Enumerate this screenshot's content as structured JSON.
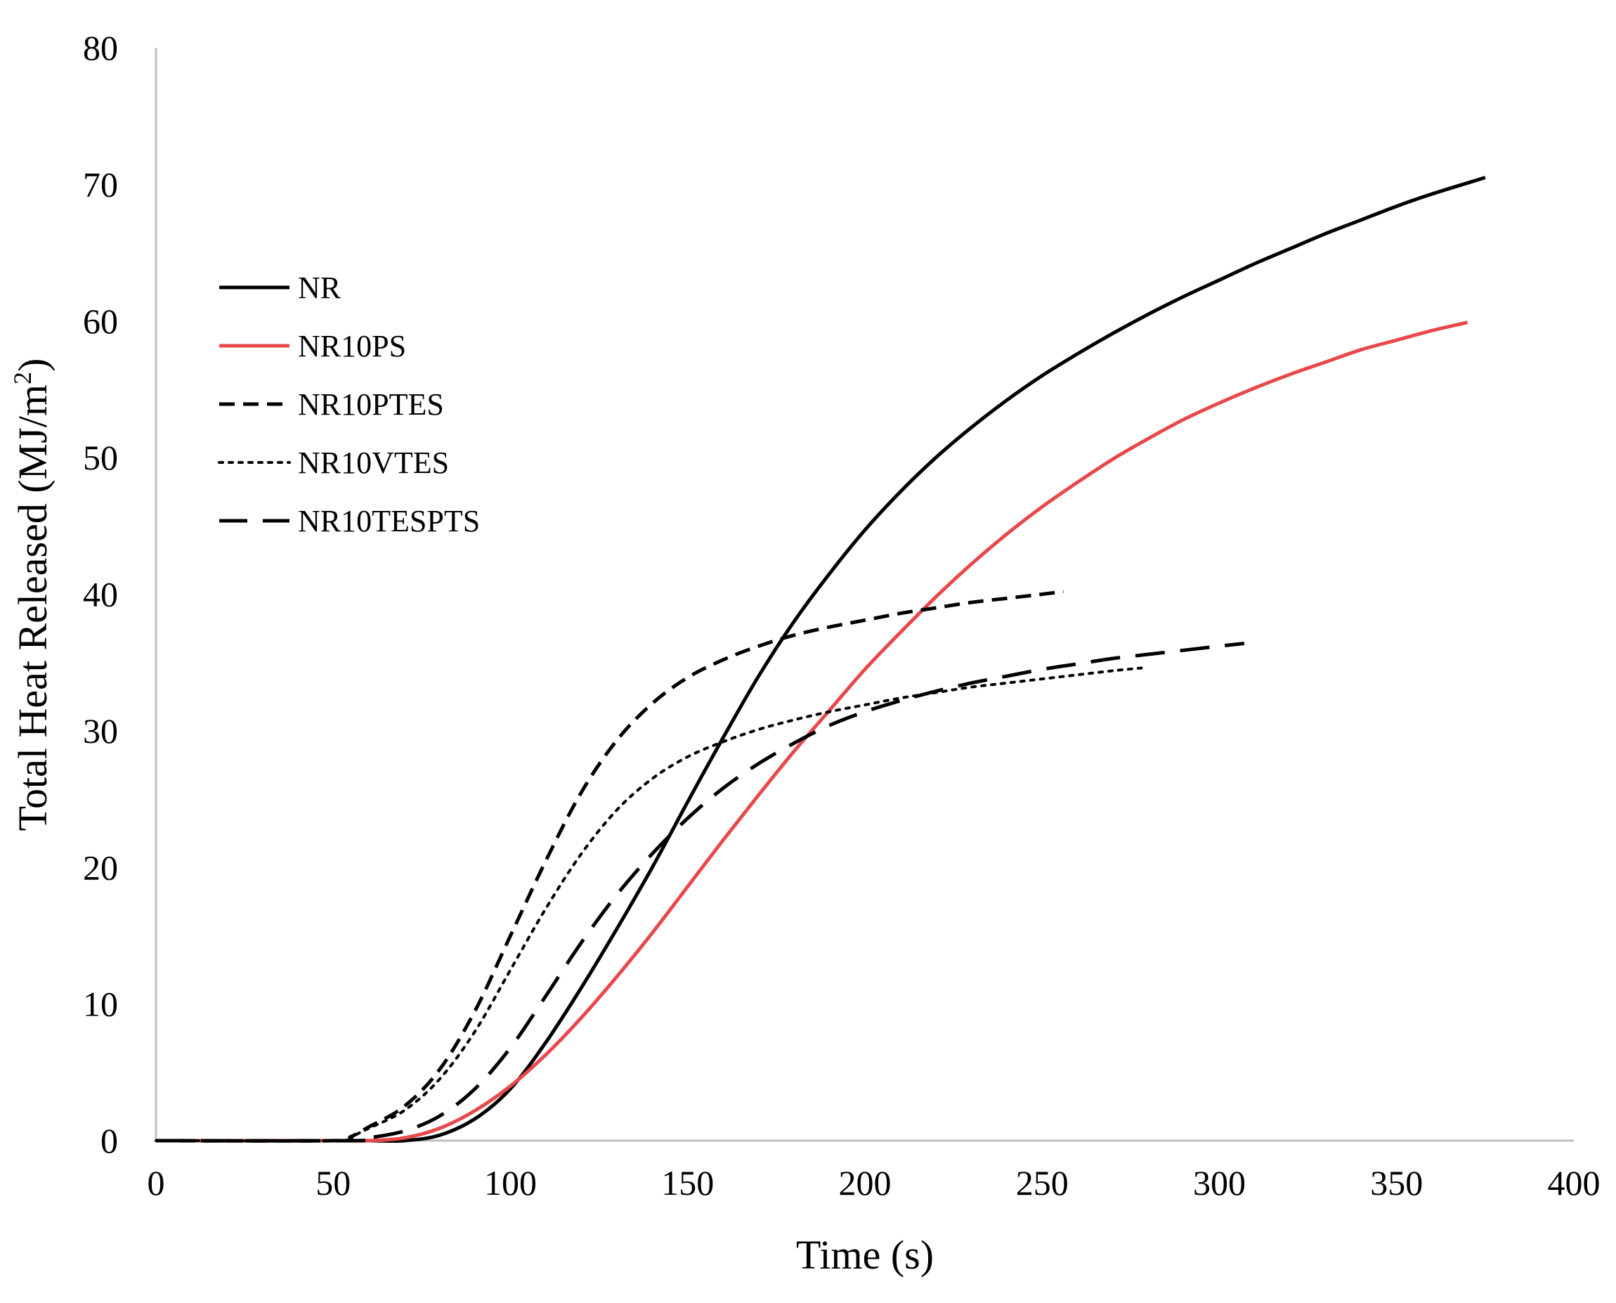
{
  "chart_data": {
    "type": "line",
    "title": "",
    "xlabel": "Time (s)",
    "ylabel_main": "Total Heat Released (MJ/m",
    "ylabel_sup": "2",
    "ylabel_end": ")",
    "xlim": [
      0,
      400
    ],
    "ylim": [
      0,
      80
    ],
    "xticks": [
      0,
      50,
      100,
      150,
      200,
      250,
      300,
      350,
      400
    ],
    "yticks": [
      0,
      10,
      20,
      30,
      40,
      50,
      60,
      70,
      80
    ],
    "grid": false,
    "legend_position": "upper-left",
    "series": [
      {
        "name": "NR",
        "style": "solid",
        "color": "#000000",
        "points": [
          [
            0,
            0
          ],
          [
            50,
            0
          ],
          [
            60,
            0
          ],
          [
            70,
            0
          ],
          [
            80,
            0.4
          ],
          [
            90,
            1.6
          ],
          [
            100,
            3.8
          ],
          [
            110,
            7.2
          ],
          [
            120,
            11.2
          ],
          [
            130,
            15.5
          ],
          [
            140,
            20.0
          ],
          [
            150,
            24.8
          ],
          [
            160,
            29.5
          ],
          [
            170,
            34.0
          ],
          [
            180,
            38.0
          ],
          [
            190,
            41.5
          ],
          [
            200,
            44.7
          ],
          [
            210,
            47.5
          ],
          [
            220,
            50.0
          ],
          [
            230,
            52.2
          ],
          [
            240,
            54.2
          ],
          [
            250,
            56.0
          ],
          [
            260,
            57.6
          ],
          [
            270,
            59.1
          ],
          [
            280,
            60.5
          ],
          [
            290,
            61.8
          ],
          [
            300,
            63.0
          ],
          [
            310,
            64.2
          ],
          [
            320,
            65.3
          ],
          [
            330,
            66.4
          ],
          [
            340,
            67.4
          ],
          [
            350,
            68.4
          ],
          [
            360,
            69.3
          ],
          [
            375,
            70.5
          ]
        ]
      },
      {
        "name": "NR10PS",
        "style": "solid",
        "color": "#e8484a",
        "points": [
          [
            0,
            0
          ],
          [
            50,
            0
          ],
          [
            60,
            0
          ],
          [
            70,
            0.2
          ],
          [
            80,
            0.9
          ],
          [
            90,
            2.2
          ],
          [
            100,
            4.0
          ],
          [
            110,
            6.3
          ],
          [
            120,
            9.0
          ],
          [
            130,
            12.0
          ],
          [
            140,
            15.2
          ],
          [
            150,
            18.6
          ],
          [
            160,
            22.0
          ],
          [
            170,
            25.3
          ],
          [
            180,
            28.5
          ],
          [
            190,
            31.5
          ],
          [
            200,
            34.5
          ],
          [
            210,
            37.2
          ],
          [
            220,
            39.8
          ],
          [
            230,
            42.2
          ],
          [
            240,
            44.4
          ],
          [
            250,
            46.4
          ],
          [
            260,
            48.2
          ],
          [
            270,
            49.9
          ],
          [
            280,
            51.4
          ],
          [
            290,
            52.8
          ],
          [
            300,
            54.0
          ],
          [
            310,
            55.1
          ],
          [
            320,
            56.1
          ],
          [
            330,
            57.0
          ],
          [
            340,
            57.9
          ],
          [
            350,
            58.6
          ],
          [
            360,
            59.3
          ],
          [
            370,
            59.9
          ]
        ]
      },
      {
        "name": "NR10PTES",
        "style": "dashed",
        "color": "#000000",
        "points": [
          [
            0,
            0
          ],
          [
            50,
            0
          ],
          [
            55,
            0.3
          ],
          [
            60,
            1.0
          ],
          [
            70,
            2.5
          ],
          [
            80,
            5.2
          ],
          [
            90,
            9.5
          ],
          [
            100,
            15.0
          ],
          [
            110,
            20.5
          ],
          [
            120,
            25.5
          ],
          [
            130,
            29.3
          ],
          [
            140,
            32.0
          ],
          [
            150,
            33.9
          ],
          [
            160,
            35.2
          ],
          [
            170,
            36.2
          ],
          [
            180,
            37.0
          ],
          [
            190,
            37.6
          ],
          [
            200,
            38.1
          ],
          [
            210,
            38.6
          ],
          [
            220,
            39.0
          ],
          [
            230,
            39.4
          ],
          [
            240,
            39.7
          ],
          [
            250,
            40.0
          ],
          [
            256,
            40.2
          ]
        ]
      },
      {
        "name": "NR10VTES",
        "style": "dotted",
        "color": "#000000",
        "points": [
          [
            0,
            0
          ],
          [
            50,
            0
          ],
          [
            55,
            0.3
          ],
          [
            60,
            0.9
          ],
          [
            70,
            2.2
          ],
          [
            80,
            4.5
          ],
          [
            90,
            8.0
          ],
          [
            100,
            12.5
          ],
          [
            110,
            17.0
          ],
          [
            120,
            21.0
          ],
          [
            130,
            24.2
          ],
          [
            140,
            26.5
          ],
          [
            150,
            28.1
          ],
          [
            160,
            29.2
          ],
          [
            170,
            30.1
          ],
          [
            180,
            30.8
          ],
          [
            190,
            31.4
          ],
          [
            200,
            31.9
          ],
          [
            210,
            32.4
          ],
          [
            220,
            32.8
          ],
          [
            230,
            33.2
          ],
          [
            240,
            33.5
          ],
          [
            250,
            33.8
          ],
          [
            260,
            34.1
          ],
          [
            270,
            34.4
          ],
          [
            278,
            34.6
          ]
        ]
      },
      {
        "name": "NR10TESPTS",
        "style": "longdash",
        "color": "#000000",
        "points": [
          [
            0,
            0
          ],
          [
            55,
            0
          ],
          [
            60,
            0.2
          ],
          [
            70,
            0.7
          ],
          [
            80,
            1.8
          ],
          [
            90,
            3.8
          ],
          [
            100,
            6.8
          ],
          [
            110,
            10.6
          ],
          [
            120,
            14.5
          ],
          [
            130,
            18.0
          ],
          [
            140,
            21.0
          ],
          [
            150,
            23.6
          ],
          [
            160,
            25.8
          ],
          [
            170,
            27.6
          ],
          [
            180,
            29.1
          ],
          [
            190,
            30.4
          ],
          [
            200,
            31.4
          ],
          [
            210,
            32.2
          ],
          [
            220,
            32.9
          ],
          [
            230,
            33.5
          ],
          [
            240,
            34.0
          ],
          [
            250,
            34.5
          ],
          [
            260,
            34.9
          ],
          [
            270,
            35.3
          ],
          [
            280,
            35.6
          ],
          [
            290,
            35.9
          ],
          [
            300,
            36.2
          ],
          [
            307,
            36.4
          ]
        ]
      }
    ]
  },
  "colors": {
    "axis": "#bfbfbf",
    "text": "#000000",
    "background": "#ffffff"
  }
}
